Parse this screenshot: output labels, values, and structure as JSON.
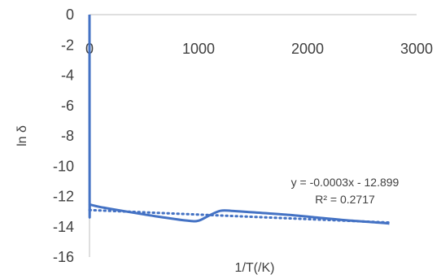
{
  "chart_data": {
    "type": "scatter",
    "xlabel": "1/T(/K)",
    "ylabel": "ln δ",
    "xlim": [
      0,
      3000
    ],
    "ylim": [
      -16,
      0
    ],
    "x_ticks": [
      "0",
      "1000",
      "2000",
      "3000"
    ],
    "y_ticks": [
      "0",
      "-2",
      "-4",
      "-6",
      "-8",
      "-10",
      "-12",
      "-14",
      "-16"
    ],
    "grid": false,
    "colors": {
      "series": "#4472c4",
      "axis": "#bfbfbf",
      "text": "#404040"
    },
    "series": [
      {
        "x": [
          0,
          1,
          3,
          10,
          100,
          300,
          600,
          900,
          1000,
          1100,
          1200,
          1300,
          1500,
          1800,
          2100,
          2400,
          2700,
          2750
        ],
        "y": [
          0,
          -12.45,
          -12.5,
          -12.55,
          -12.7,
          -12.95,
          -13.3,
          -13.6,
          -13.6,
          -13.25,
          -12.95,
          -12.95,
          -13.05,
          -13.2,
          -13.4,
          -13.6,
          -13.75,
          -13.8
        ]
      }
    ],
    "trendline": {
      "kind": "linear",
      "slope": -0.0003,
      "intercept": -12.899,
      "x_range": [
        0,
        2750
      ],
      "equation": "y = -0.0003x - 12.899",
      "r_squared": "R² = 0.2717"
    }
  }
}
